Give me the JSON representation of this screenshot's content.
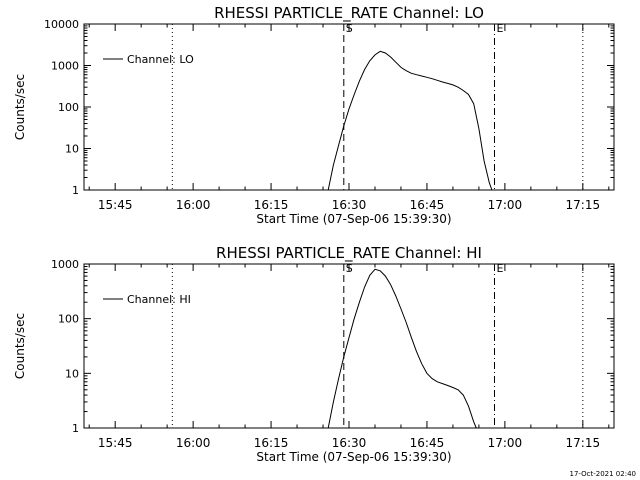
{
  "footer_timestamp": "17-Oct-2021 02:40",
  "chart_data": [
    {
      "type": "line",
      "title": "RHESSI PARTICLE_RATE Channel: LO",
      "xlabel": "Start Time (07-Sep-06 15:39:30)",
      "ylabel": "Counts/sec",
      "y_scale": "log",
      "ylim": [
        1,
        10000
      ],
      "yticks": [
        1,
        10,
        100,
        1000,
        10000
      ],
      "ytick_labels": [
        "1",
        "10",
        "100",
        "1000",
        "10000"
      ],
      "xlim": [
        "15:39",
        "17:21"
      ],
      "xticks": [
        "15:45",
        "16:00",
        "16:15",
        "16:30",
        "16:45",
        "17:00",
        "17:15"
      ],
      "legend": {
        "label": "Channel: LO",
        "position": "top-left"
      },
      "vlines": [
        {
          "x": "15:56",
          "style": "dotted"
        },
        {
          "x": "16:29",
          "style": "dashed",
          "label": "S"
        },
        {
          "x": "16:58",
          "style": "dashdot",
          "label": "E"
        },
        {
          "x": "17:15",
          "style": "dotted"
        }
      ],
      "series": [
        {
          "name": "Channel: LO",
          "x": [
            "16:26",
            "16:27",
            "16:28",
            "16:29",
            "16:30",
            "16:31",
            "16:32",
            "16:33",
            "16:34",
            "16:35",
            "16:36",
            "16:37",
            "16:38",
            "16:39",
            "16:40",
            "16:41",
            "16:42",
            "16:43",
            "16:44",
            "16:45",
            "16:46",
            "16:47",
            "16:48",
            "16:49",
            "16:50",
            "16:51",
            "16:52",
            "16:53",
            "16:54",
            "16:55",
            "16:56",
            "16:57",
            "16:57.5"
          ],
          "y": [
            1,
            4,
            12,
            35,
            90,
            200,
            420,
            800,
            1300,
            1800,
            2200,
            2000,
            1600,
            1200,
            900,
            750,
            650,
            600,
            560,
            520,
            480,
            440,
            400,
            370,
            340,
            300,
            250,
            200,
            120,
            30,
            5,
            1.5,
            1
          ]
        }
      ]
    },
    {
      "type": "line",
      "title": "RHESSI PARTICLE_RATE Channel: HI",
      "xlabel": "Start Time (07-Sep-06 15:39:30)",
      "ylabel": "Counts/sec",
      "y_scale": "log",
      "ylim": [
        1,
        1000
      ],
      "yticks": [
        1,
        10,
        100,
        1000
      ],
      "ytick_labels": [
        "1",
        "10",
        "100",
        "1000"
      ],
      "xlim": [
        "15:39",
        "17:21"
      ],
      "xticks": [
        "15:45",
        "16:00",
        "16:15",
        "16:30",
        "16:45",
        "17:00",
        "17:15"
      ],
      "legend": {
        "label": "Channel: HI",
        "position": "top-left"
      },
      "vlines": [
        {
          "x": "15:56",
          "style": "dotted"
        },
        {
          "x": "16:29",
          "style": "dashed",
          "label": "S"
        },
        {
          "x": "16:58",
          "style": "dashdot",
          "label": "E"
        },
        {
          "x": "17:15",
          "style": "dotted"
        }
      ],
      "series": [
        {
          "name": "Channel: HI",
          "x": [
            "16:26",
            "16:27",
            "16:28",
            "16:29",
            "16:30",
            "16:31",
            "16:32",
            "16:33",
            "16:34",
            "16:35",
            "16:36",
            "16:37",
            "16:38",
            "16:39",
            "16:40",
            "16:41",
            "16:42",
            "16:43",
            "16:44",
            "16:45",
            "16:46",
            "16:47",
            "16:48",
            "16:49",
            "16:50",
            "16:51",
            "16:52",
            "16:53",
            "16:54",
            "16:54.5"
          ],
          "y": [
            1,
            3,
            8,
            20,
            45,
            100,
            200,
            380,
            620,
            800,
            750,
            600,
            420,
            260,
            150,
            85,
            45,
            25,
            15,
            10,
            8,
            7,
            6.5,
            6,
            5.5,
            5,
            4,
            2.5,
            1.3,
            1
          ]
        }
      ]
    }
  ]
}
